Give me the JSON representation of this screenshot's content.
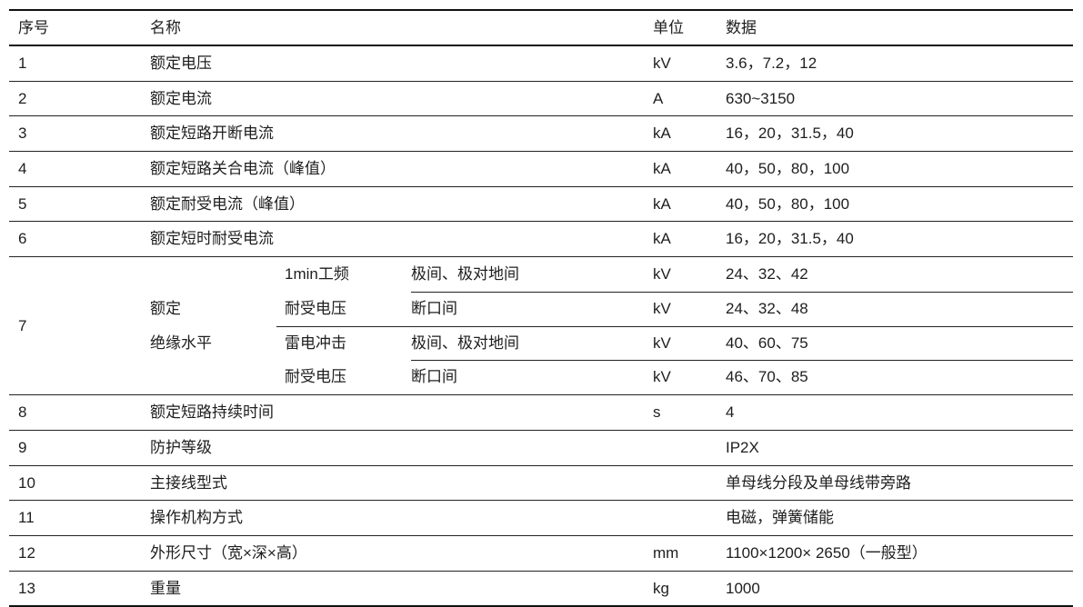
{
  "header": {
    "num": "序号",
    "name": "名称",
    "unit": "单位",
    "data": "数据"
  },
  "rows_before": [
    {
      "num": "1",
      "name": "额定电压",
      "unit": "kV",
      "data": "3.6，7.2，12"
    },
    {
      "num": "2",
      "name": "额定电流",
      "unit": "A",
      "data": "630~3150"
    },
    {
      "num": "3",
      "name": "额定短路开断电流",
      "unit": "kA",
      "data": "16，20，31.5，40"
    },
    {
      "num": "4",
      "name": "额定短路关合电流（峰值）",
      "unit": "kA",
      "data": "40，50，80，100"
    },
    {
      "num": "5",
      "name": "额定耐受电流（峰值）",
      "unit": "kA",
      "data": "40，50，80，100"
    },
    {
      "num": "6",
      "name": "额定短时耐受电流",
      "unit": "kA",
      "data": "16，20，31.5，40"
    }
  ],
  "insulation": {
    "num": "7",
    "name_line1": "额定",
    "name_line2": "绝缘水平",
    "groups": [
      {
        "cat_line1": "1min工频",
        "cat_line2": "耐受电压",
        "items": [
          {
            "label": "极间、极对地间",
            "unit": "kV",
            "data": "24、32、42"
          },
          {
            "label": "断口间",
            "unit": "kV",
            "data": "24、32、48"
          }
        ]
      },
      {
        "cat_line1": "雷电冲击",
        "cat_line2": "耐受电压",
        "items": [
          {
            "label": "极间、极对地间",
            "unit": "kV",
            "data": "40、60、75"
          },
          {
            "label": "断口间",
            "unit": "kV",
            "data": "46、70、85"
          }
        ]
      }
    ]
  },
  "rows_after": [
    {
      "num": "8",
      "name": "额定短路持续时间",
      "unit": "s",
      "data": "4"
    },
    {
      "num": "9",
      "name": "防护等级",
      "unit": "",
      "data": "IP2X"
    },
    {
      "num": "10",
      "name": "主接线型式",
      "unit": "",
      "data": "单母线分段及单母线带旁路"
    },
    {
      "num": "11",
      "name": "操作机构方式",
      "unit": "",
      "data": "电磁，弹簧储能"
    },
    {
      "num": "12",
      "name": "外形尺寸（宽×深×高）",
      "unit": "mm",
      "data": "1100×1200× 2650（一般型）"
    },
    {
      "num": "13",
      "name": "重量",
      "unit": "kg",
      "data": "1000"
    }
  ]
}
